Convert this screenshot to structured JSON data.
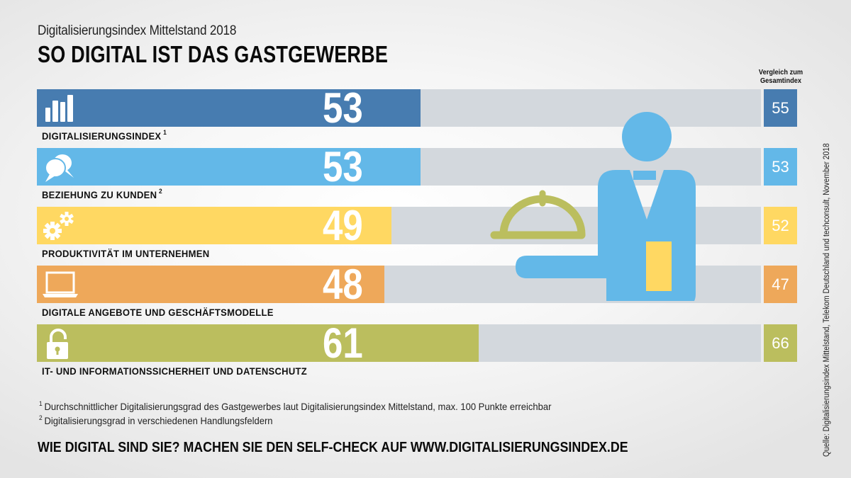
{
  "header": {
    "subtitle": "Digitalisierungsindex Mittelstand 2018",
    "title": "SO DIGITAL IST DAS GASTGEWERBE"
  },
  "compare_header": {
    "line1": "Vergleich zum",
    "line2": "Gesamtindex"
  },
  "chart_data": {
    "type": "bar",
    "orientation": "horizontal",
    "title": "SO DIGITAL IST DAS GASTGEWERBE",
    "subtitle": "Digitalisierungsindex Mittelstand 2018",
    "xlim": [
      0,
      100
    ],
    "categories": [
      "DIGITALISIERUNGSINDEX",
      "BEZIEHUNG ZU KUNDEN",
      "PRODUKTIVITÄT IM UNTERNEHMEN",
      "DIGITALE ANGEBOTE UND GESCHÄFTSMODELLE",
      "IT- UND INFORMATIONSSICHERHEIT UND DATENSCHUTZ"
    ],
    "series": [
      {
        "name": "Gastgewerbe",
        "values": [
          53,
          53,
          49,
          48,
          61
        ]
      },
      {
        "name": "Vergleich zum Gesamtindex",
        "values": [
          55,
          53,
          52,
          47,
          66
        ]
      }
    ],
    "rows": [
      {
        "label": "DIGITALISIERUNGSINDEX",
        "footnote_ref": "1",
        "icon": "bar-chart-icon",
        "value": 53,
        "display": "53",
        "compare": "55",
        "color": "#477cb0"
      },
      {
        "label": "BEZIEHUNG ZU KUNDEN",
        "footnote_ref": "2",
        "icon": "speech-bubbles-icon",
        "value": 53,
        "display": "53",
        "compare": "53",
        "color": "#63b8e8"
      },
      {
        "label": "PRODUKTIVITÄT IM UNTERNEHMEN",
        "footnote_ref": "",
        "icon": "gears-icon",
        "value": 49,
        "display": "49",
        "compare": "52",
        "color": "#ffd862"
      },
      {
        "label": "DIGITALE ANGEBOTE UND GESCHÄFTSMODELLE",
        "footnote_ref": "",
        "icon": "laptop-icon",
        "value": 48,
        "display": "48",
        "compare": "47",
        "color": "#eea85a"
      },
      {
        "label": "IT- UND INFORMATIONSSICHERHEIT UND DATENSCHUTZ",
        "footnote_ref": "",
        "icon": "padlock-icon",
        "value": 61,
        "display": "61",
        "compare": "66",
        "color": "#bbbe5e"
      }
    ],
    "track_color": "#d3d8dd"
  },
  "illustration": {
    "icon": "waiter-with-cloche-icon",
    "colors": {
      "body": "#63b8e8",
      "cloche": "#bbbe5e",
      "napkin": "#ffd862"
    }
  },
  "footnotes": [
    {
      "mark": "1",
      "text": "Durchschnittlicher Digitalisierungsgrad des Gastgewerbes laut Digitalisierungsindex Mittelstand, max. 100 Punkte erreichbar"
    },
    {
      "mark": "2",
      "text": "Digitalisierungsgrad in verschiedenen Handlungsfeldern"
    }
  ],
  "cta": "WIE DIGITAL SIND SIE? MACHEN SIE DEN SELF-CHECK AUF WWW.DIGITALISIERUNGSINDEX.DE",
  "source": "Quelle: Digitalisierungsindex Mittelstand, Telekom Deutschland und techconsult, November 2018"
}
